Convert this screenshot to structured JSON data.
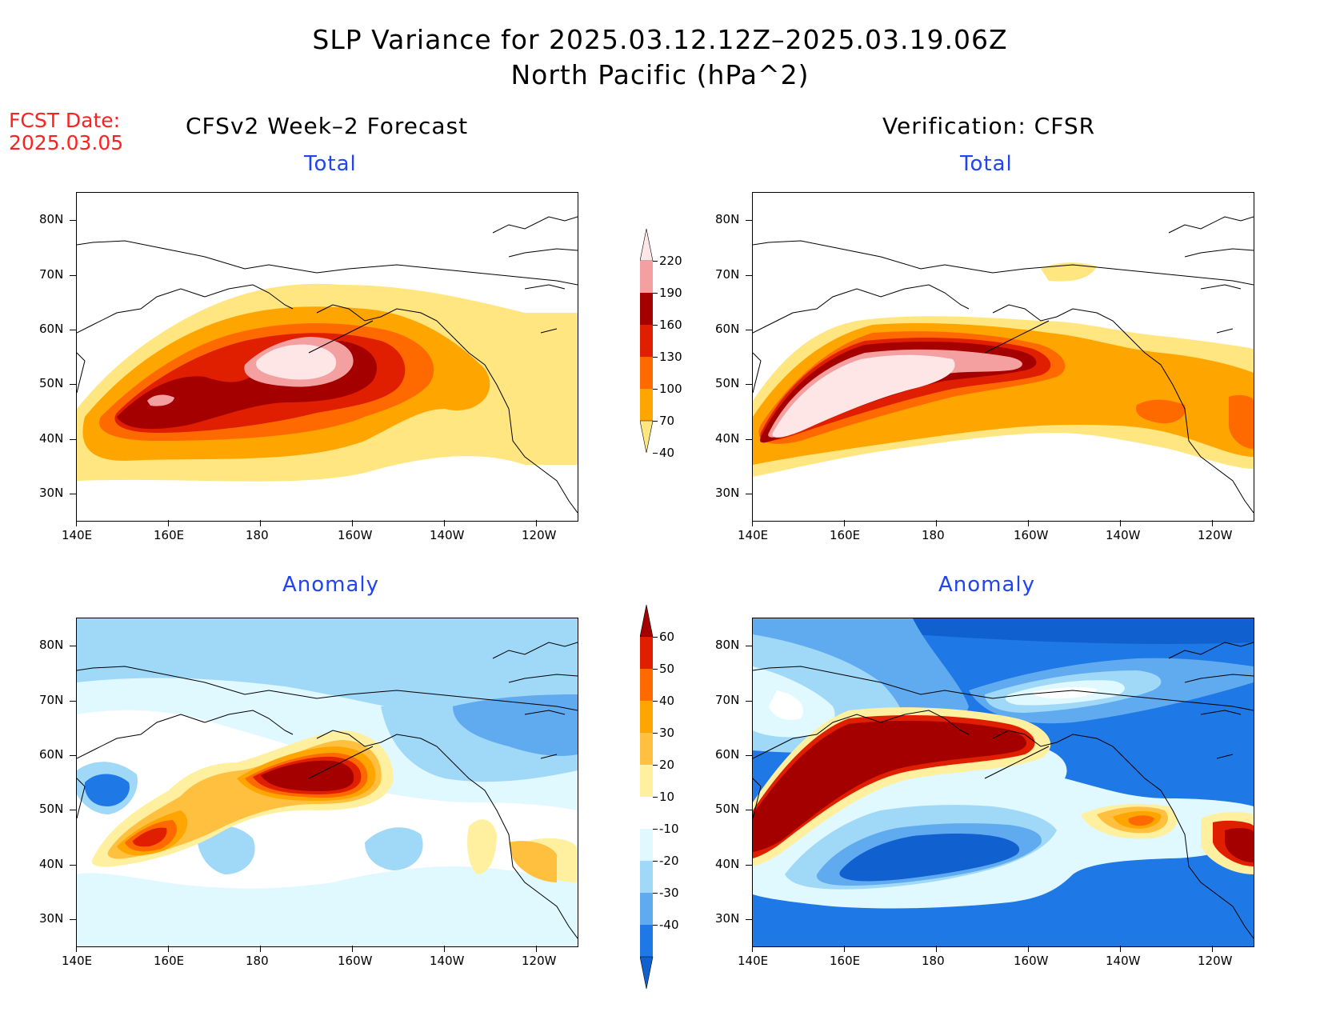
{
  "title": {
    "line1": "SLP Variance for 2025.03.12.12Z–2025.03.19.06Z",
    "line2": "North Pacific (hPa^2)"
  },
  "fcst": {
    "line1": "FCST Date:",
    "line2": "2025.03.05"
  },
  "columns": {
    "left": "CFSv2 Week–2 Forecast",
    "right": "Verification: CFSR"
  },
  "panels": [
    {
      "id": "fcst-total",
      "label": "Total"
    },
    {
      "id": "cfsr-total",
      "label": "Total"
    },
    {
      "id": "fcst-anomaly",
      "label": "Anomaly"
    },
    {
      "id": "cfsr-anomaly",
      "label": "Anomaly"
    }
  ],
  "axes": {
    "lat_labels": [
      "80N",
      "70N",
      "60N",
      "50N",
      "40N",
      "30N"
    ],
    "lon_labels": [
      "140E",
      "160E",
      "180",
      "160W",
      "140W",
      "120W"
    ]
  },
  "colorbars": {
    "total": {
      "labels": [
        "220",
        "190",
        "160",
        "130",
        "100",
        "70",
        "40"
      ],
      "colors": [
        "#ffe6e6",
        "#f4a0a0",
        "#a50000",
        "#e01e00",
        "#ff6a00",
        "#ffa500",
        "#ffe680"
      ]
    },
    "anomaly": {
      "labels": [
        "60",
        "50",
        "40",
        "30",
        "20",
        "10",
        "-10",
        "-20",
        "-30",
        "-40"
      ],
      "colors": [
        "#a50000",
        "#e01e00",
        "#ff6a00",
        "#ffa500",
        "#ffc040",
        "#fff0a0",
        "#ffffff",
        "#e0f8ff",
        "#a0d8f8",
        "#60aaf0",
        "#1e78e6",
        "#1060d0"
      ]
    }
  }
}
